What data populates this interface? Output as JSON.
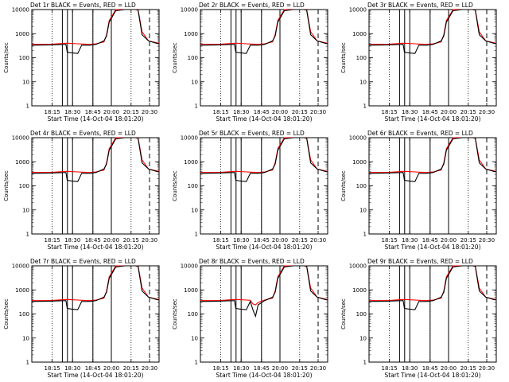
{
  "figure": {
    "x_title": "Start Time (14-Oct-04 18:01:20)",
    "y_title": "Counts/sec",
    "x_tick_labels": [
      "18:15",
      "18:30",
      "18:45",
      "20:00",
      "20:15",
      "20:30"
    ],
    "y_tick_labels": [
      "1",
      "10",
      "100",
      "1000",
      "10000"
    ],
    "colors": {
      "events": "#000000",
      "lld": "#ff0000"
    }
  },
  "chart_data": [
    {
      "type": "line",
      "title": "Det 1r BLACK = Events, RED = LLD",
      "ylim": [
        1,
        10000
      ],
      "yscale": "log",
      "x": [
        "18:01",
        "18:15",
        "18:27",
        "18:28",
        "18:31",
        "18:36",
        "18:39",
        "18:45",
        "18:50",
        "18:56",
        "18:58",
        "19:00",
        "19:05",
        "19:12",
        "19:20",
        "19:22",
        "19:25",
        "19:30",
        "19:36",
        "19:38"
      ],
      "series": [
        {
          "name": "Events",
          "values": [
            330,
            340,
            360,
            170,
            160,
            150,
            330,
            330,
            360,
            500,
            800,
            3000,
            9000,
            10000,
            10000,
            9500,
            900,
            500,
            400,
            380
          ]
        },
        {
          "name": "LLD",
          "values": [
            360,
            360,
            400,
            400,
            390,
            380,
            370,
            360,
            380,
            450,
            900,
            3500,
            10000,
            10000,
            10000,
            9800,
            1200,
            500,
            420,
            400
          ]
        }
      ]
    },
    {
      "type": "line",
      "title": "Det 2r BLACK = Events, RED = LLD",
      "ylim": [
        1,
        10000
      ],
      "yscale": "log",
      "x": [
        "18:01",
        "18:15",
        "18:27",
        "18:28",
        "18:31",
        "18:36",
        "18:39",
        "18:45",
        "18:50",
        "18:56",
        "18:58",
        "19:00",
        "19:05",
        "19:12",
        "19:20",
        "19:22",
        "19:25",
        "19:30",
        "19:36",
        "19:38"
      ],
      "series": [
        {
          "name": "Events",
          "values": [
            330,
            340,
            360,
            170,
            160,
            150,
            330,
            330,
            360,
            500,
            800,
            3000,
            9000,
            10000,
            10000,
            9500,
            900,
            500,
            400,
            380
          ]
        },
        {
          "name": "LLD",
          "values": [
            360,
            360,
            400,
            400,
            390,
            380,
            370,
            360,
            380,
            450,
            900,
            3500,
            10000,
            10000,
            10000,
            9800,
            1200,
            500,
            420,
            400
          ]
        }
      ]
    },
    {
      "type": "line",
      "title": "Det 3r BLACK = Events, RED = LLD",
      "ylim": [
        1,
        10000
      ],
      "yscale": "log",
      "x": [
        "18:01",
        "18:15",
        "18:27",
        "18:28",
        "18:31",
        "18:36",
        "18:39",
        "18:45",
        "18:50",
        "18:56",
        "18:58",
        "19:00",
        "19:05",
        "19:12",
        "19:20",
        "19:22",
        "19:25",
        "19:30",
        "19:36",
        "19:38"
      ],
      "series": [
        {
          "name": "Events",
          "values": [
            330,
            340,
            360,
            170,
            160,
            150,
            330,
            330,
            360,
            500,
            800,
            3000,
            9000,
            10000,
            10000,
            9500,
            900,
            500,
            400,
            380
          ]
        },
        {
          "name": "LLD",
          "values": [
            360,
            360,
            400,
            400,
            390,
            380,
            370,
            360,
            380,
            450,
            900,
            3500,
            10000,
            10000,
            10000,
            9800,
            1200,
            500,
            420,
            400
          ]
        }
      ]
    },
    {
      "type": "line",
      "title": "Det 4r BLACK = Events, RED = LLD",
      "ylim": [
        1,
        10000
      ],
      "yscale": "log",
      "x": [
        "18:01",
        "18:15",
        "18:27",
        "18:28",
        "18:31",
        "18:36",
        "18:39",
        "18:45",
        "18:50",
        "18:56",
        "18:58",
        "19:00",
        "19:05",
        "19:12",
        "19:20",
        "19:22",
        "19:25",
        "19:30",
        "19:36",
        "19:38"
      ],
      "series": [
        {
          "name": "Events",
          "values": [
            330,
            340,
            360,
            170,
            160,
            150,
            330,
            330,
            360,
            500,
            800,
            3000,
            9000,
            10000,
            10000,
            9500,
            900,
            500,
            400,
            380
          ]
        },
        {
          "name": "LLD",
          "values": [
            360,
            360,
            400,
            400,
            390,
            380,
            370,
            360,
            380,
            450,
            900,
            3500,
            10000,
            10000,
            10000,
            9800,
            1200,
            500,
            420,
            400
          ]
        }
      ]
    },
    {
      "type": "line",
      "title": "Det 5r BLACK = Events, RED = LLD",
      "ylim": [
        1,
        10000
      ],
      "yscale": "log",
      "x": [
        "18:01",
        "18:15",
        "18:27",
        "18:28",
        "18:31",
        "18:36",
        "18:39",
        "18:45",
        "18:50",
        "18:56",
        "18:58",
        "19:00",
        "19:05",
        "19:12",
        "19:20",
        "19:22",
        "19:25",
        "19:30",
        "19:36",
        "19:38"
      ],
      "series": [
        {
          "name": "Events",
          "values": [
            330,
            340,
            360,
            170,
            160,
            150,
            330,
            330,
            360,
            500,
            800,
            3000,
            9000,
            10000,
            10000,
            9500,
            900,
            500,
            400,
            380
          ]
        },
        {
          "name": "LLD",
          "values": [
            360,
            360,
            400,
            400,
            390,
            380,
            370,
            360,
            380,
            450,
            900,
            3500,
            10000,
            10000,
            10000,
            9800,
            1200,
            500,
            420,
            400
          ]
        }
      ]
    },
    {
      "type": "line",
      "title": "Det 6r BLACK = Events, RED = LLD",
      "ylim": [
        1,
        10000
      ],
      "yscale": "log",
      "x": [
        "18:01",
        "18:15",
        "18:27",
        "18:28",
        "18:31",
        "18:36",
        "18:39",
        "18:45",
        "18:50",
        "18:56",
        "18:58",
        "19:00",
        "19:05",
        "19:12",
        "19:20",
        "19:22",
        "19:25",
        "19:30",
        "19:36",
        "19:38"
      ],
      "series": [
        {
          "name": "Events",
          "values": [
            330,
            340,
            360,
            170,
            160,
            150,
            330,
            330,
            360,
            500,
            800,
            3000,
            9000,
            10000,
            10000,
            9500,
            900,
            500,
            400,
            380
          ]
        },
        {
          "name": "LLD",
          "values": [
            360,
            360,
            400,
            400,
            390,
            380,
            370,
            360,
            380,
            450,
            900,
            3500,
            10000,
            10000,
            10000,
            9800,
            1200,
            500,
            420,
            400
          ]
        }
      ]
    },
    {
      "type": "line",
      "title": "Det 7r BLACK = Events, RED = LLD",
      "ylim": [
        1,
        10000
      ],
      "yscale": "log",
      "x": [
        "18:01",
        "18:15",
        "18:27",
        "18:28",
        "18:31",
        "18:36",
        "18:39",
        "18:45",
        "18:50",
        "18:56",
        "18:58",
        "19:00",
        "19:05",
        "19:12",
        "19:20",
        "19:22",
        "19:25",
        "19:30",
        "19:36",
        "19:38"
      ],
      "series": [
        {
          "name": "Events",
          "values": [
            330,
            340,
            360,
            170,
            160,
            150,
            330,
            330,
            360,
            500,
            800,
            3000,
            9000,
            10000,
            10000,
            9500,
            900,
            500,
            400,
            380
          ]
        },
        {
          "name": "LLD",
          "values": [
            360,
            360,
            400,
            400,
            390,
            380,
            370,
            360,
            380,
            450,
            900,
            3500,
            10000,
            10000,
            10000,
            9800,
            1200,
            500,
            420,
            400
          ]
        }
      ]
    },
    {
      "type": "line",
      "title": "Det 8r BLACK = Events, RED = LLD",
      "ylim": [
        1,
        10000
      ],
      "yscale": "log",
      "x": [
        "18:01",
        "18:15",
        "18:27",
        "18:28",
        "18:31",
        "18:36",
        "18:39",
        "18:41",
        "18:43",
        "18:45",
        "18:50",
        "18:56",
        "18:58",
        "19:00",
        "19:05",
        "19:12",
        "19:20",
        "19:22",
        "19:25",
        "19:30",
        "19:36",
        "19:38"
      ],
      "series": [
        {
          "name": "Events",
          "values": [
            330,
            340,
            360,
            170,
            160,
            150,
            330,
            150,
            80,
            240,
            360,
            500,
            800,
            3000,
            9000,
            10000,
            10000,
            9500,
            900,
            500,
            400,
            380
          ]
        },
        {
          "name": "LLD",
          "values": [
            360,
            360,
            400,
            400,
            390,
            380,
            370,
            260,
            240,
            300,
            380,
            450,
            900,
            3500,
            10000,
            10000,
            10000,
            9800,
            1200,
            500,
            420,
            400
          ]
        }
      ]
    },
    {
      "type": "line",
      "title": "Det 9r BLACK = Events, RED = LLD",
      "ylim": [
        1,
        10000
      ],
      "yscale": "log",
      "x": [
        "18:01",
        "18:15",
        "18:27",
        "18:28",
        "18:31",
        "18:36",
        "18:39",
        "18:45",
        "18:50",
        "18:56",
        "18:58",
        "19:00",
        "19:05",
        "19:12",
        "19:20",
        "19:22",
        "19:25",
        "19:30",
        "19:36",
        "19:38"
      ],
      "series": [
        {
          "name": "Events",
          "values": [
            330,
            340,
            360,
            170,
            160,
            150,
            330,
            330,
            360,
            500,
            800,
            3000,
            9000,
            10000,
            10000,
            9500,
            900,
            500,
            400,
            380
          ]
        },
        {
          "name": "LLD",
          "values": [
            360,
            360,
            400,
            400,
            390,
            380,
            370,
            360,
            380,
            450,
            900,
            3500,
            10000,
            10000,
            10000,
            9800,
            1200,
            500,
            420,
            400
          ]
        }
      ]
    }
  ]
}
